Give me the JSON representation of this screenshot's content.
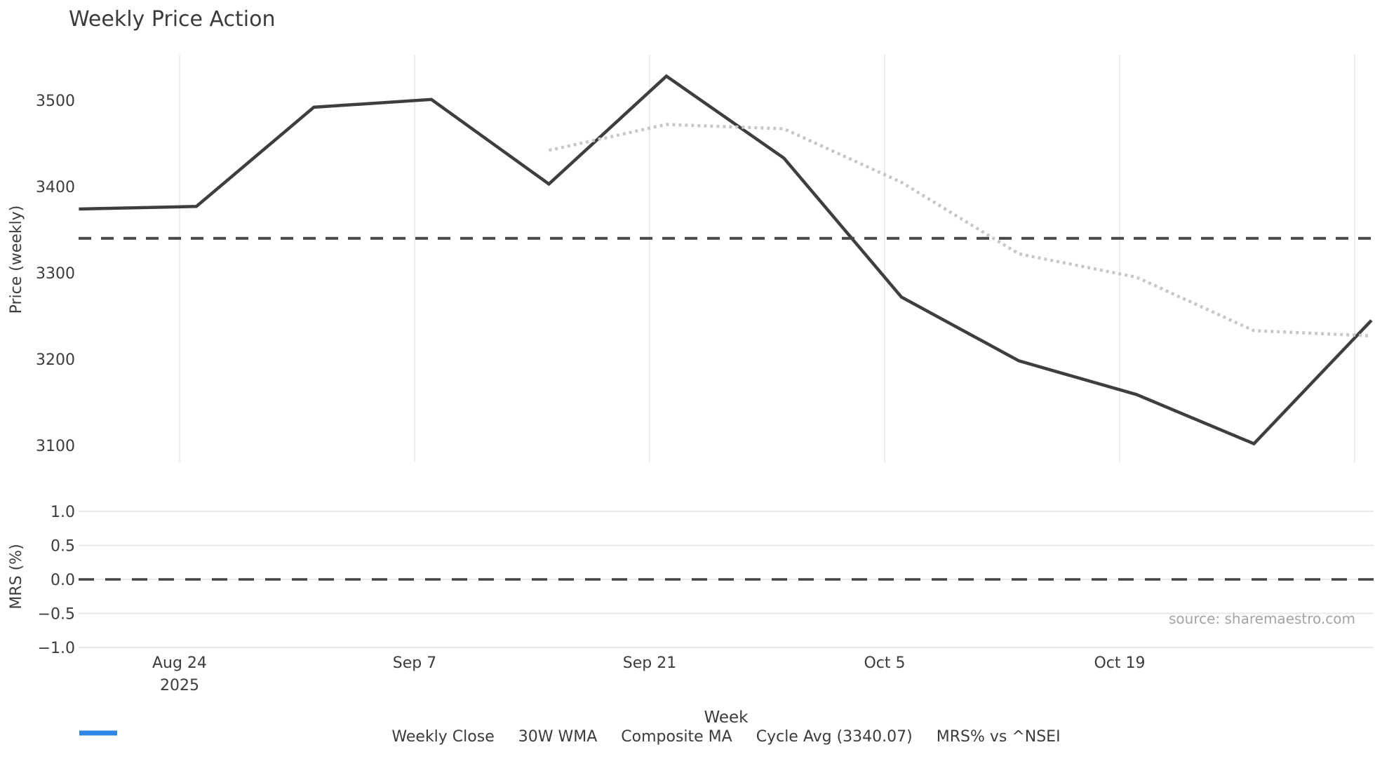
{
  "title": "Weekly Price Action",
  "source": "source: sharemaestro.com",
  "price_axis": {
    "label": "Price (weekly)",
    "ticks": [
      3500,
      3400,
      3300,
      3200,
      3100
    ]
  },
  "mrs_axis": {
    "label": "MRS (%)",
    "ticks": [
      {
        "label": "1.0",
        "value": 1.0
      },
      {
        "label": "0.5",
        "value": 0.5
      },
      {
        "label": "0.0",
        "value": 0.0
      },
      {
        "label": "−0.5",
        "value": -0.5
      },
      {
        "label": "−1.0",
        "value": -1.0
      }
    ]
  },
  "x_axis": {
    "label": "Week",
    "ticks": [
      {
        "label": "Aug 24",
        "sub": "2025",
        "day": 6
      },
      {
        "label": "Sep 7",
        "day": 20
      },
      {
        "label": "Sep 21",
        "day": 34
      },
      {
        "label": "Oct 5",
        "day": 48
      },
      {
        "label": "Oct 19",
        "day": 62
      }
    ],
    "gridline_days": [
      6,
      20,
      34,
      48,
      62,
      76
    ]
  },
  "legend": {
    "items": [
      {
        "label": "Weekly Close",
        "type": "solid",
        "color": "#3e3e3e"
      },
      {
        "label": "30W WMA",
        "type": "solid",
        "color": "#d4a21f"
      },
      {
        "label": "Composite MA",
        "type": "dotted",
        "color": "#c7c7c7"
      },
      {
        "label": "Cycle Avg (3340.07)",
        "type": "dashed",
        "color": "#474747"
      },
      {
        "label": "MRS% vs ^NSEI",
        "type": "solid",
        "color": "#2e86e8"
      }
    ]
  },
  "chart_data": {
    "type": "line",
    "title": "Weekly Price Action",
    "xlabel": "Week",
    "x_tick_labels": [
      "Aug 24 2025",
      "Sep 7",
      "Sep 21",
      "Oct 5",
      "Oct 19"
    ],
    "legend_position": "bottom",
    "grid": {
      "price_panel": "vertical-only",
      "mrs_panel": "horizontal-only"
    },
    "panels": [
      {
        "ylabel": "Price (weekly)",
        "y_ticks": [
          3100,
          3200,
          3300,
          3400,
          3500
        ],
        "ylim_approx": [
          3080,
          3555
        ],
        "series": [
          {
            "name": "Weekly Close",
            "style": "solid",
            "color": "#3e3e3e",
            "width": 4.5,
            "dates": [
              "2025-08-18",
              "2025-08-25",
              "2025-09-01",
              "2025-09-08",
              "2025-09-15",
              "2025-09-22",
              "2025-09-29",
              "2025-10-06",
              "2025-10-13",
              "2025-10-20",
              "2025-10-27",
              "2025-11-03"
            ],
            "x_days": [
              0,
              7,
              14,
              21,
              28,
              35,
              42,
              49,
              56,
              63,
              70,
              77
            ],
            "values": [
              3374,
              3377,
              3492,
              3501,
              3403,
              3528,
              3433,
              3272,
              3198,
              3159,
              3102,
              3245
            ]
          },
          {
            "name": "30W WMA",
            "style": "solid",
            "color": "#d4a21f",
            "width": 4.5,
            "x_days": [],
            "values": [],
            "note": "in legend only; no visible data in plotted range"
          },
          {
            "name": "Composite MA",
            "style": "dotted",
            "color": "#c7c7c7",
            "width": 4.5,
            "dates": [
              "2025-09-15",
              "2025-09-22",
              "2025-09-29",
              "2025-10-06",
              "2025-10-13",
              "2025-10-20",
              "2025-10-27",
              "2025-11-03"
            ],
            "x_days": [
              28,
              35,
              42,
              49,
              56,
              63,
              70,
              77
            ],
            "values": [
              3442,
              3472,
              3467,
              3405,
              3322,
              3295,
              3233,
              3227
            ]
          },
          {
            "name": "Cycle Avg",
            "style": "dashed",
            "color": "#474747",
            "width": 4,
            "constant": 3340.07
          }
        ]
      },
      {
        "ylabel": "MRS (%)",
        "y_ticks": [
          -1.0,
          -0.5,
          0.0,
          0.5,
          1.0
        ],
        "ylim_approx": [
          -1.05,
          1.25
        ],
        "series": [
          {
            "name": "MRS% vs ^NSEI",
            "style": "solid",
            "color": "#2e86e8",
            "width": 4,
            "x_days": [],
            "values": [],
            "note": "in legend only; no visible data in plotted range"
          },
          {
            "name": "zero-line",
            "style": "dashed",
            "color": "#424242",
            "width": 3.5,
            "constant": 0
          }
        ]
      }
    ]
  }
}
